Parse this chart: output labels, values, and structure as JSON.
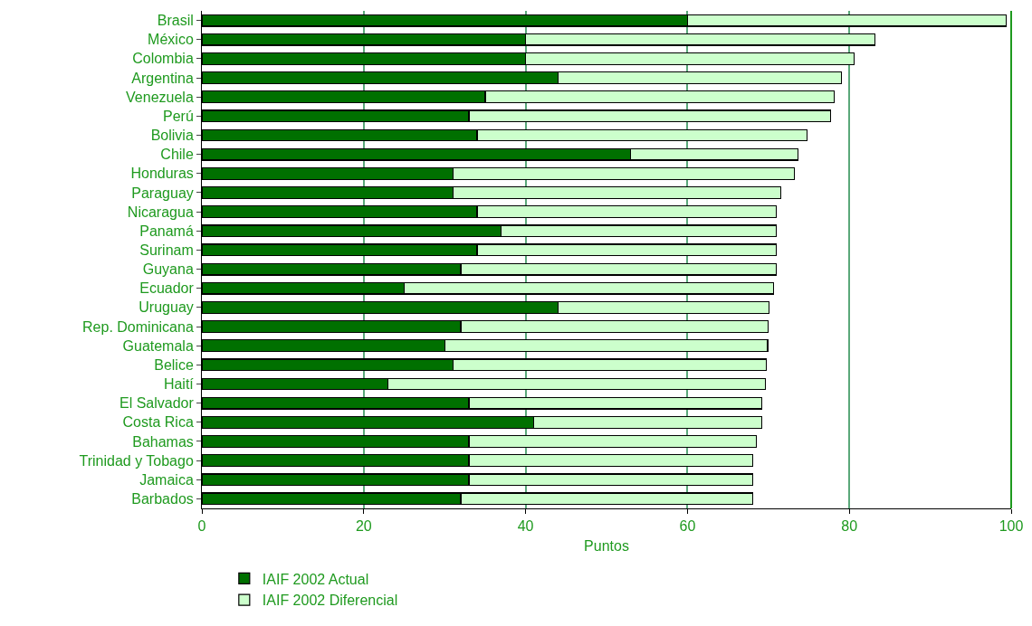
{
  "chart_data": {
    "type": "bar",
    "orientation": "horizontal",
    "stacked": true,
    "xlabel": "Puntos",
    "categories": [
      "Brasil",
      "México",
      "Colombia",
      "Argentina",
      "Venezuela",
      "Perú",
      "Bolivia",
      "Chile",
      "Honduras",
      "Paraguay",
      "Nicaragua",
      "Panamá",
      "Surinam",
      "Guyana",
      "Ecuador",
      "Uruguay",
      "Rep. Dominicana",
      "Guatemala",
      "Belice",
      "Haití",
      "El Salvador",
      "Costa Rica",
      "Bahamas",
      "Trinidad y Tobago",
      "Jamaica",
      "Barbados"
    ],
    "series": [
      {
        "name": "IAIF 2002 Actual",
        "color": "#007000",
        "values": [
          60,
          40,
          40,
          44,
          35,
          33,
          34,
          53,
          31,
          31,
          34,
          37,
          34,
          32,
          25,
          44,
          32,
          30,
          31,
          23,
          33,
          41,
          33,
          33,
          33,
          32
        ]
      },
      {
        "name": "IAIF 2002 Diferencial",
        "color": "#ccffcc",
        "values": [
          39.4,
          43.2,
          40.6,
          35.0,
          43.1,
          44.7,
          40.8,
          20.7,
          42.2,
          40.5,
          37.0,
          34.0,
          37.0,
          39.0,
          45.6,
          26.1,
          38.0,
          39.9,
          38.7,
          46.6,
          36.2,
          28.2,
          35.5,
          35.1,
          35.1,
          36.1
        ]
      }
    ],
    "xlim": [
      0,
      100
    ],
    "xticks": [
      0,
      20,
      40,
      60,
      80,
      100
    ],
    "grid": "x",
    "legend": "bottom"
  }
}
